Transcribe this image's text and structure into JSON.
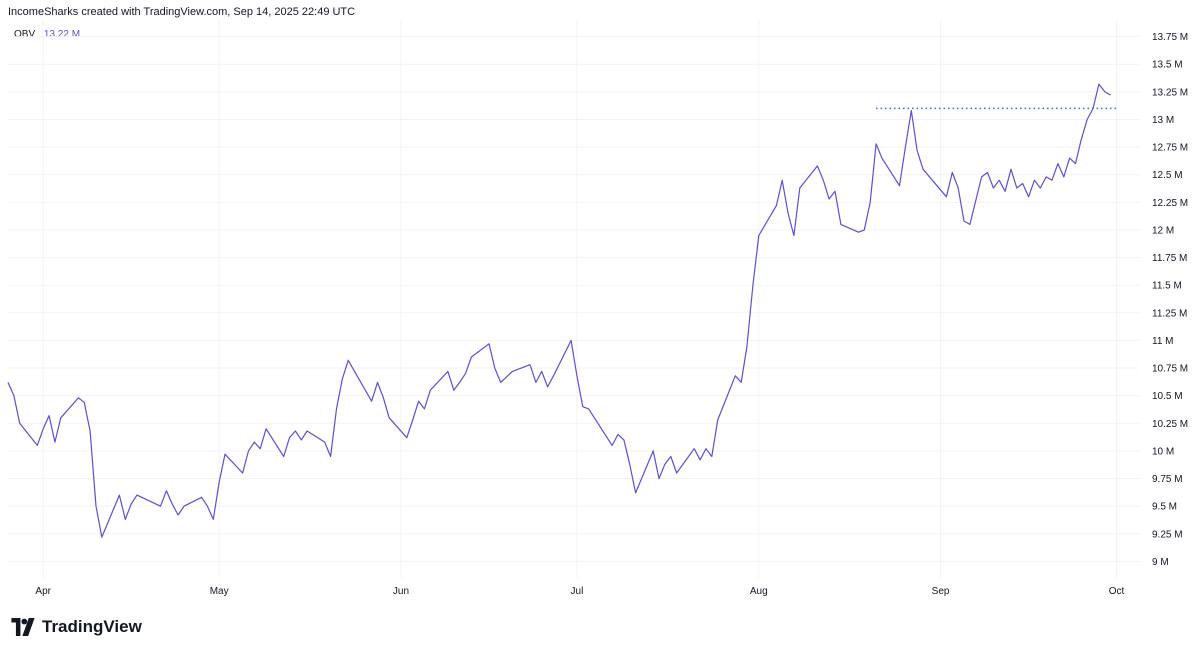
{
  "header": {
    "attribution": "IncomeSharks created with TradingView.com, Sep 14, 2025 22:49 UTC"
  },
  "legend": {
    "name": "OBV",
    "value": "13.22 M"
  },
  "brand": {
    "name": "TradingView"
  },
  "colors": {
    "line": "#5b50d6",
    "level": "#2f6fd6",
    "grid": "#f0f3fa",
    "text": "#131722"
  },
  "chart_data": {
    "type": "line",
    "title": "",
    "xlabel": "",
    "ylabel": "",
    "ylim": [
      8.85,
      13.9
    ],
    "xlim": [
      "2025-03-26",
      "2025-10-05"
    ],
    "grid": true,
    "y_ticks": [
      "13.75 M",
      "13.5 M",
      "13.25 M",
      "13 M",
      "12.75 M",
      "12.5 M",
      "12.25 M",
      "12 M",
      "11.75 M",
      "11.5 M",
      "11.25 M",
      "11 M",
      "10.75 M",
      "10.5 M",
      "10.25 M",
      "10 M",
      "9.75 M",
      "9.5 M",
      "9.25 M",
      "9 M"
    ],
    "y_tick_values": [
      13.75,
      13.5,
      13.25,
      13,
      12.75,
      12.5,
      12.25,
      12,
      11.75,
      11.5,
      11.25,
      11,
      10.75,
      10.5,
      10.25,
      10,
      9.75,
      9.5,
      9.25,
      9
    ],
    "x_ticks": [
      {
        "label": "Apr",
        "date": "2025-04-01"
      },
      {
        "label": "May",
        "date": "2025-05-01"
      },
      {
        "label": "Jun",
        "date": "2025-06-01"
      },
      {
        "label": "Jul",
        "date": "2025-07-01"
      },
      {
        "label": "Aug",
        "date": "2025-08-01"
      },
      {
        "label": "Sep",
        "date": "2025-09-01"
      },
      {
        "label": "Oct",
        "date": "2025-10-01"
      }
    ],
    "series": [
      {
        "values": [
          [
            "2025-03-26",
            10.62
          ],
          [
            "2025-03-27",
            10.5
          ],
          [
            "2025-03-28",
            10.25
          ],
          [
            "2025-03-31",
            10.05
          ],
          [
            "2025-04-01",
            10.2
          ],
          [
            "2025-04-02",
            10.32
          ],
          [
            "2025-04-03",
            10.08
          ],
          [
            "2025-04-04",
            10.3
          ],
          [
            "2025-04-07",
            10.48
          ],
          [
            "2025-04-08",
            10.44
          ],
          [
            "2025-04-09",
            10.18
          ],
          [
            "2025-04-10",
            9.5
          ],
          [
            "2025-04-11",
            9.22
          ],
          [
            "2025-04-14",
            9.6
          ],
          [
            "2025-04-15",
            9.38
          ],
          [
            "2025-04-16",
            9.52
          ],
          [
            "2025-04-17",
            9.6
          ],
          [
            "2025-04-21",
            9.5
          ],
          [
            "2025-04-22",
            9.64
          ],
          [
            "2025-04-23",
            9.52
          ],
          [
            "2025-04-24",
            9.42
          ],
          [
            "2025-04-25",
            9.5
          ],
          [
            "2025-04-28",
            9.58
          ],
          [
            "2025-04-29",
            9.5
          ],
          [
            "2025-04-30",
            9.38
          ],
          [
            "2025-05-01",
            9.72
          ],
          [
            "2025-05-02",
            9.97
          ],
          [
            "2025-05-05",
            9.8
          ],
          [
            "2025-05-06",
            10.0
          ],
          [
            "2025-05-07",
            10.08
          ],
          [
            "2025-05-08",
            10.02
          ],
          [
            "2025-05-09",
            10.2
          ],
          [
            "2025-05-12",
            9.95
          ],
          [
            "2025-05-13",
            10.12
          ],
          [
            "2025-05-14",
            10.18
          ],
          [
            "2025-05-15",
            10.1
          ],
          [
            "2025-05-16",
            10.18
          ],
          [
            "2025-05-19",
            10.08
          ],
          [
            "2025-05-20",
            9.95
          ],
          [
            "2025-05-21",
            10.38
          ],
          [
            "2025-05-22",
            10.65
          ],
          [
            "2025-05-23",
            10.82
          ],
          [
            "2025-05-27",
            10.45
          ],
          [
            "2025-05-28",
            10.62
          ],
          [
            "2025-05-29",
            10.48
          ],
          [
            "2025-05-30",
            10.3
          ],
          [
            "2025-06-02",
            10.12
          ],
          [
            "2025-06-03",
            10.28
          ],
          [
            "2025-06-04",
            10.45
          ],
          [
            "2025-06-05",
            10.38
          ],
          [
            "2025-06-06",
            10.55
          ],
          [
            "2025-06-09",
            10.72
          ],
          [
            "2025-06-10",
            10.55
          ],
          [
            "2025-06-11",
            10.62
          ],
          [
            "2025-06-12",
            10.7
          ],
          [
            "2025-06-13",
            10.85
          ],
          [
            "2025-06-16",
            10.97
          ],
          [
            "2025-06-17",
            10.75
          ],
          [
            "2025-06-18",
            10.62
          ],
          [
            "2025-06-20",
            10.72
          ],
          [
            "2025-06-23",
            10.78
          ],
          [
            "2025-06-24",
            10.62
          ],
          [
            "2025-06-25",
            10.72
          ],
          [
            "2025-06-26",
            10.58
          ],
          [
            "2025-06-27",
            10.68
          ],
          [
            "2025-06-30",
            11.0
          ],
          [
            "2025-07-01",
            10.68
          ],
          [
            "2025-07-02",
            10.4
          ],
          [
            "2025-07-03",
            10.38
          ],
          [
            "2025-07-07",
            10.05
          ],
          [
            "2025-07-08",
            10.15
          ],
          [
            "2025-07-09",
            10.1
          ],
          [
            "2025-07-10",
            9.88
          ],
          [
            "2025-07-11",
            9.62
          ],
          [
            "2025-07-14",
            10.0
          ],
          [
            "2025-07-15",
            9.75
          ],
          [
            "2025-07-16",
            9.88
          ],
          [
            "2025-07-17",
            9.95
          ],
          [
            "2025-07-18",
            9.8
          ],
          [
            "2025-07-21",
            10.02
          ],
          [
            "2025-07-22",
            9.92
          ],
          [
            "2025-07-23",
            10.02
          ],
          [
            "2025-07-24",
            9.95
          ],
          [
            "2025-07-25",
            10.28
          ],
          [
            "2025-07-28",
            10.68
          ],
          [
            "2025-07-29",
            10.62
          ],
          [
            "2025-07-30",
            10.95
          ],
          [
            "2025-07-31",
            11.5
          ],
          [
            "2025-08-01",
            11.95
          ],
          [
            "2025-08-04",
            12.22
          ],
          [
            "2025-08-05",
            12.45
          ],
          [
            "2025-08-06",
            12.15
          ],
          [
            "2025-08-07",
            11.95
          ],
          [
            "2025-08-08",
            12.38
          ],
          [
            "2025-08-11",
            12.58
          ],
          [
            "2025-08-12",
            12.45
          ],
          [
            "2025-08-13",
            12.28
          ],
          [
            "2025-08-14",
            12.35
          ],
          [
            "2025-08-15",
            12.05
          ],
          [
            "2025-08-18",
            11.98
          ],
          [
            "2025-08-19",
            12.0
          ],
          [
            "2025-08-20",
            12.25
          ],
          [
            "2025-08-21",
            12.78
          ],
          [
            "2025-08-22",
            12.65
          ],
          [
            "2025-08-25",
            12.4
          ],
          [
            "2025-08-26",
            12.75
          ],
          [
            "2025-08-27",
            13.08
          ],
          [
            "2025-08-28",
            12.72
          ],
          [
            "2025-08-29",
            12.55
          ],
          [
            "2025-09-02",
            12.3
          ],
          [
            "2025-09-03",
            12.52
          ],
          [
            "2025-09-04",
            12.38
          ],
          [
            "2025-09-05",
            12.08
          ],
          [
            "2025-09-06",
            12.05
          ],
          [
            "2025-09-08",
            12.48
          ],
          [
            "2025-09-09",
            12.52
          ],
          [
            "2025-09-10",
            12.38
          ],
          [
            "2025-09-11",
            12.45
          ],
          [
            "2025-09-12",
            12.35
          ],
          [
            "2025-09-13",
            12.55
          ],
          [
            "2025-09-14",
            12.38
          ],
          [
            "2025-09-15",
            12.42
          ],
          [
            "2025-09-16",
            12.3
          ],
          [
            "2025-09-17",
            12.45
          ],
          [
            "2025-09-18",
            12.38
          ],
          [
            "2025-09-19",
            12.48
          ],
          [
            "2025-09-20",
            12.45
          ],
          [
            "2025-09-21",
            12.6
          ],
          [
            "2025-09-22",
            12.48
          ],
          [
            "2025-09-23",
            12.65
          ],
          [
            "2025-09-24",
            12.6
          ],
          [
            "2025-09-25",
            12.82
          ],
          [
            "2025-09-26",
            13.0
          ],
          [
            "2025-09-27",
            13.1
          ],
          [
            "2025-09-28",
            13.32
          ],
          [
            "2025-09-29",
            13.25
          ],
          [
            "2025-09-30",
            13.22
          ]
        ]
      }
    ],
    "horizontal_levels": [
      {
        "value": 13.1,
        "from": "2025-08-21",
        "to": "2025-10-01",
        "style": "dotted"
      }
    ]
  }
}
